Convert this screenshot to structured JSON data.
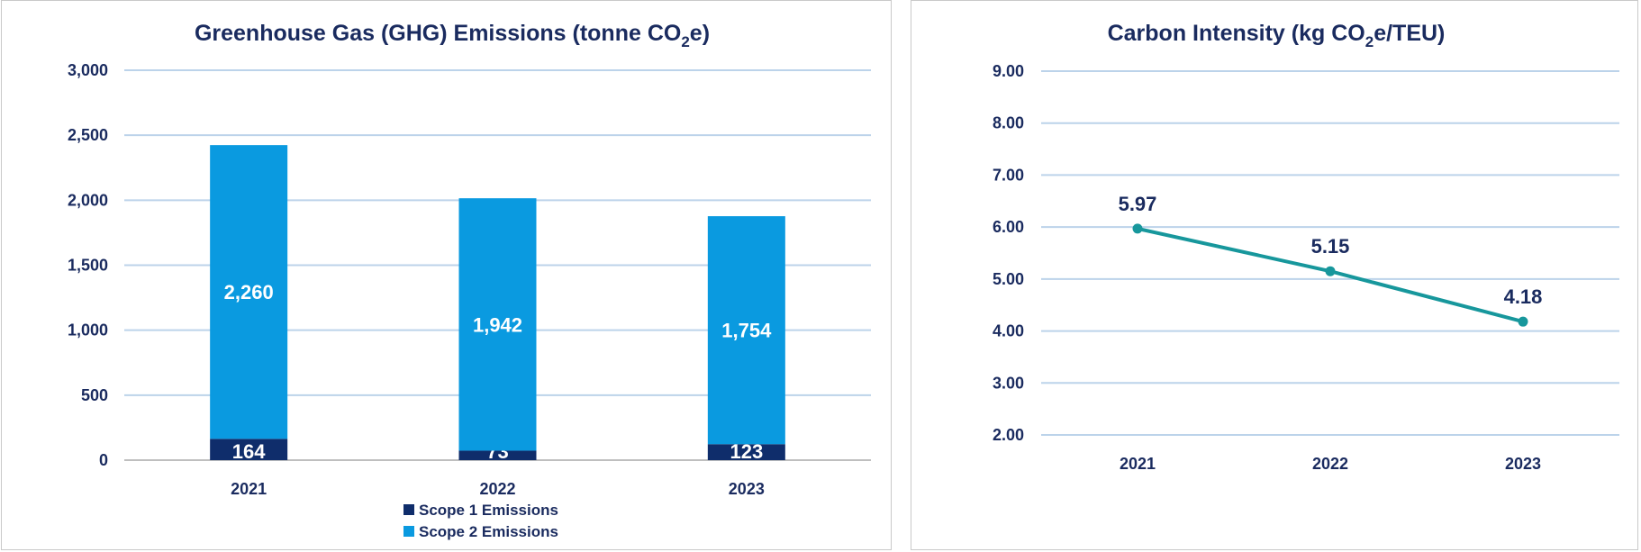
{
  "chart_data": [
    {
      "type": "bar",
      "stacked": true,
      "title_parts": [
        "Greenhouse Gas (GHG) Emissions (tonne CO",
        "2",
        "e)"
      ],
      "categories": [
        "2021",
        "2022",
        "2023"
      ],
      "series": [
        {
          "name": "Scope 1 Emissions",
          "values": [
            164,
            73,
            123
          ],
          "labels": [
            "164",
            "73",
            "123"
          ],
          "color": "#0f2d6b"
        },
        {
          "name": "Scope 2 Emissions",
          "values": [
            2260,
            1942,
            1754
          ],
          "labels": [
            "2,260",
            "1,942",
            "1,754"
          ],
          "color": "#0a9ae0"
        }
      ],
      "ylim": [
        0,
        3000
      ],
      "yticks": [
        0,
        500,
        1000,
        1500,
        2000,
        2500,
        3000
      ],
      "ytick_labels": [
        "0",
        "500",
        "1,000",
        "1,500",
        "2,000",
        "2,500",
        "3,000"
      ],
      "grid": true,
      "legend_position": "bottom"
    },
    {
      "type": "line",
      "title_parts": [
        "Carbon Intensity (kg CO",
        "2",
        "e/TEU)"
      ],
      "categories": [
        "2021",
        "2022",
        "2023"
      ],
      "series": [
        {
          "values": [
            5.97,
            5.15,
            4.18
          ],
          "labels": [
            "5.97",
            "5.15",
            "4.18"
          ],
          "color": "#17979c"
        }
      ],
      "ylim": [
        2.0,
        9.0
      ],
      "yticks": [
        2,
        3,
        4,
        5,
        6,
        7,
        8,
        9
      ],
      "ytick_labels": [
        "2.00",
        "3.00",
        "4.00",
        "5.00",
        "6.00",
        "7.00",
        "8.00",
        "9.00"
      ],
      "grid": true
    }
  ],
  "colors": {
    "grid": "#bcd3ea",
    "axis": "#bfbfbf",
    "text": "#1a2b5f",
    "label_light": "#ffffff"
  }
}
